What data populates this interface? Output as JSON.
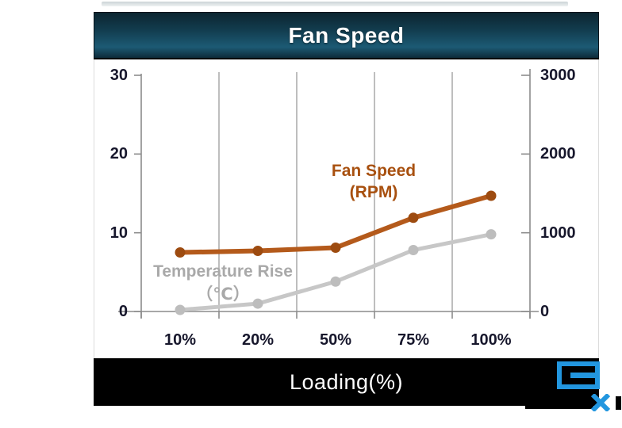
{
  "header": {
    "title": "Fan Speed"
  },
  "footer": {
    "xlabel": "Loading(%)"
  },
  "chart_data": {
    "type": "line",
    "title": "Fan Speed",
    "xlabel": "Loading(%)",
    "categories": [
      "10%",
      "20%",
      "50%",
      "75%",
      "100%"
    ],
    "left_axis": {
      "label": "Temperature Rise（℃）",
      "range": [
        0,
        30
      ],
      "ticks": [
        "30",
        "20",
        "10",
        "0"
      ]
    },
    "right_axis": {
      "label": "Fan Speed (RPM)",
      "range": [
        0,
        3000
      ],
      "ticks": [
        "3000",
        "2000",
        "1000",
        "0"
      ]
    },
    "grid": "vertical-gridlines-only",
    "legend": "none-inline-text-labels",
    "series": [
      {
        "name": "Fan Speed (RPM)",
        "axis": "right",
        "color": "#b45a1b",
        "marker_color": "#9d4b10",
        "values": [
          750,
          770,
          810,
          1190,
          1470
        ]
      },
      {
        "name": "Temperature Rise (℃)",
        "axis": "left",
        "color": "#c7c7c7",
        "marker_color": "#bdbdbd",
        "values": [
          0.2,
          1.0,
          3.8,
          7.8,
          9.8
        ]
      }
    ],
    "annotations": [
      {
        "line1": "Fan Speed",
        "line2": "(RPM)",
        "color": "#a8500f"
      },
      {
        "line1": "Temperature Rise",
        "line2": "（℃）",
        "color": "#a9a9a9"
      }
    ],
    "colors": {
      "axis": "#8c8c8c",
      "grid": "#a8a8a8",
      "tick_text": "#17172c"
    }
  },
  "logo": {
    "icon": "blue-square-e-logo",
    "blue": "#2296df"
  }
}
